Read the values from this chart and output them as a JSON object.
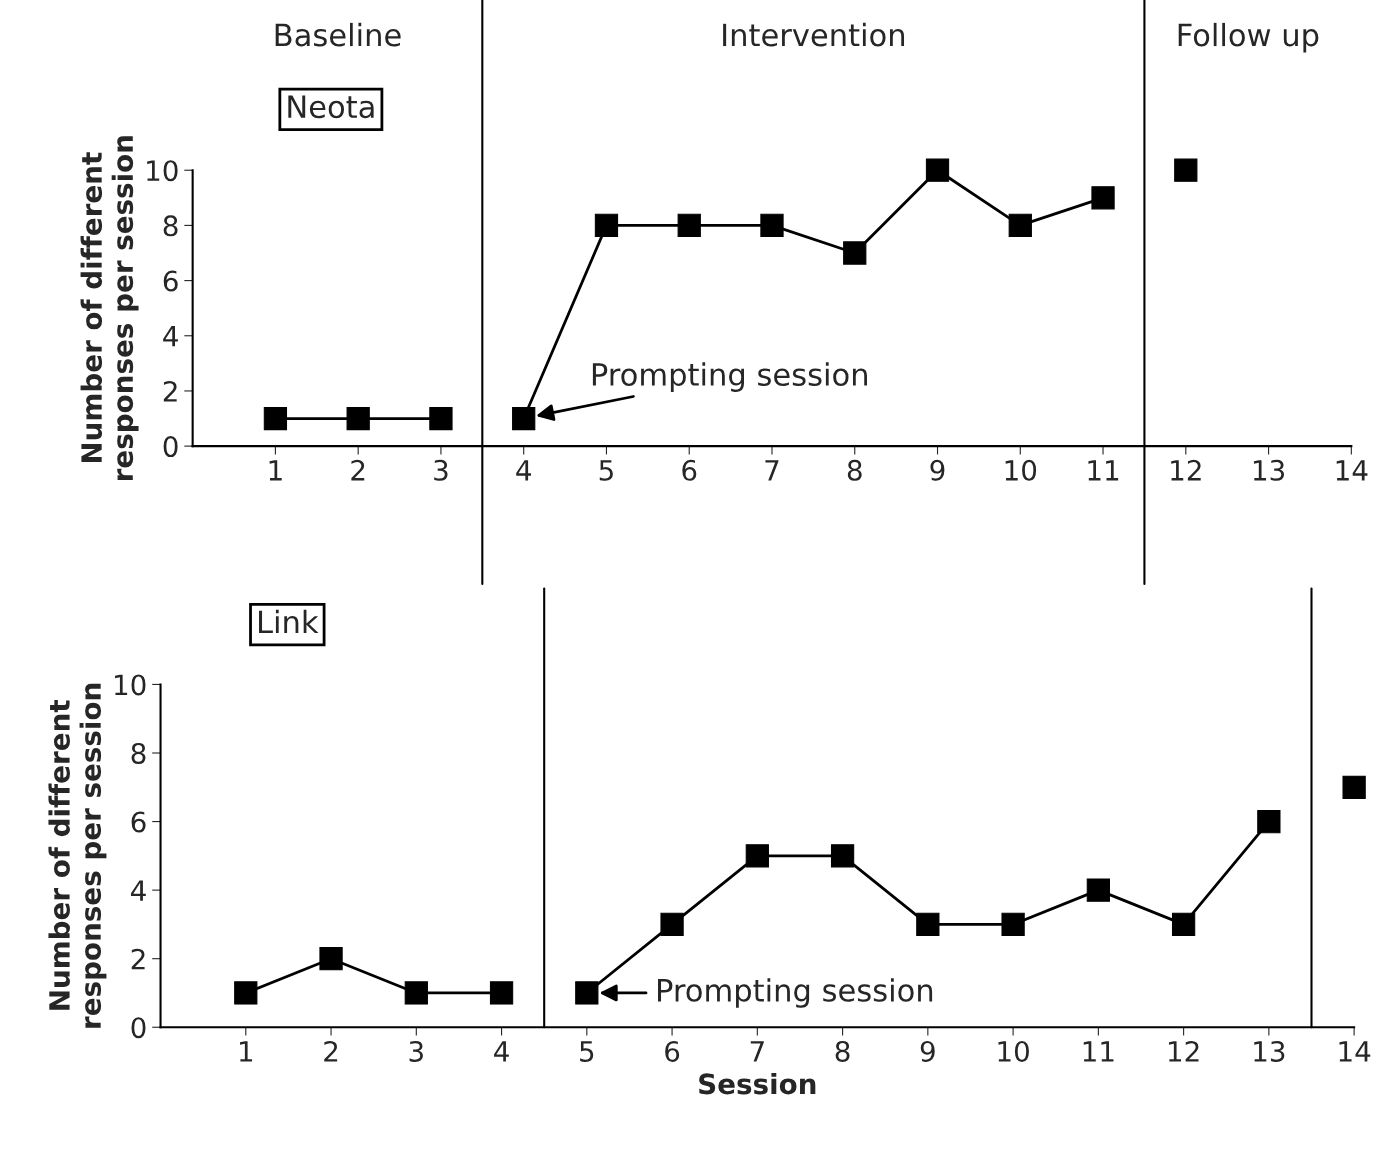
{
  "chart_data": [
    {
      "type": "line",
      "title": "Neota",
      "ylabel": "Number of different\nresponses per session",
      "xlim": [
        0,
        14
      ],
      "xticks": [
        1,
        2,
        3,
        4,
        5,
        6,
        7,
        8,
        9,
        10,
        11,
        12,
        13,
        14
      ],
      "ylim": [
        0,
        10
      ],
      "yticks": [
        0,
        2,
        4,
        6,
        8,
        10
      ],
      "marker": "square",
      "line_style": "solid",
      "grid": false,
      "legend": false,
      "series": [
        {
          "color": "#000000",
          "x": [
            1,
            2,
            3
          ],
          "values": [
            1,
            1,
            1
          ]
        },
        {
          "color": "#000000",
          "x": [
            4,
            5,
            6,
            7,
            8,
            9,
            10,
            11
          ],
          "values": [
            1,
            8,
            8,
            8,
            7,
            10,
            8,
            9
          ]
        },
        {
          "color": "#000000",
          "x": [
            12
          ],
          "values": [
            10
          ]
        }
      ],
      "ref_lines": [
        {
          "axis": "x",
          "value": 3.5,
          "color": "#000000"
        },
        {
          "axis": "x",
          "value": 11.5,
          "color": "#000000"
        }
      ],
      "annotations": [
        "Baseline",
        "Intervention",
        "Follow up",
        {
          "text": "Prompting session",
          "x": 4,
          "y": 1
        }
      ]
    },
    {
      "type": "line",
      "title": "Link",
      "xlabel": "Session",
      "ylabel": "Number of different\nresponses per session",
      "xlim": [
        0,
        14
      ],
      "xticks": [
        1,
        2,
        3,
        4,
        5,
        6,
        7,
        8,
        9,
        10,
        11,
        12,
        13,
        14
      ],
      "ylim": [
        0,
        10
      ],
      "yticks": [
        0,
        2,
        4,
        6,
        8,
        10
      ],
      "marker": "square",
      "line_style": "solid",
      "grid": false,
      "legend": false,
      "series": [
        {
          "color": "#000000",
          "x": [
            1,
            2,
            3,
            4
          ],
          "values": [
            1,
            2,
            1,
            1
          ]
        },
        {
          "color": "#000000",
          "x": [
            5,
            6,
            7,
            8,
            9,
            10,
            11,
            12,
            13
          ],
          "values": [
            1,
            3,
            5,
            5,
            3,
            3,
            4,
            3,
            6
          ]
        },
        {
          "color": "#000000",
          "x": [
            14
          ],
          "values": [
            7
          ]
        }
      ],
      "ref_lines": [
        {
          "axis": "x",
          "value": 4.5,
          "color": "#000000"
        },
        {
          "axis": "x",
          "value": 13.5,
          "color": "#000000"
        }
      ],
      "annotations": [
        {
          "text": "Prompting session",
          "x": 5,
          "y": 1
        }
      ]
    }
  ]
}
